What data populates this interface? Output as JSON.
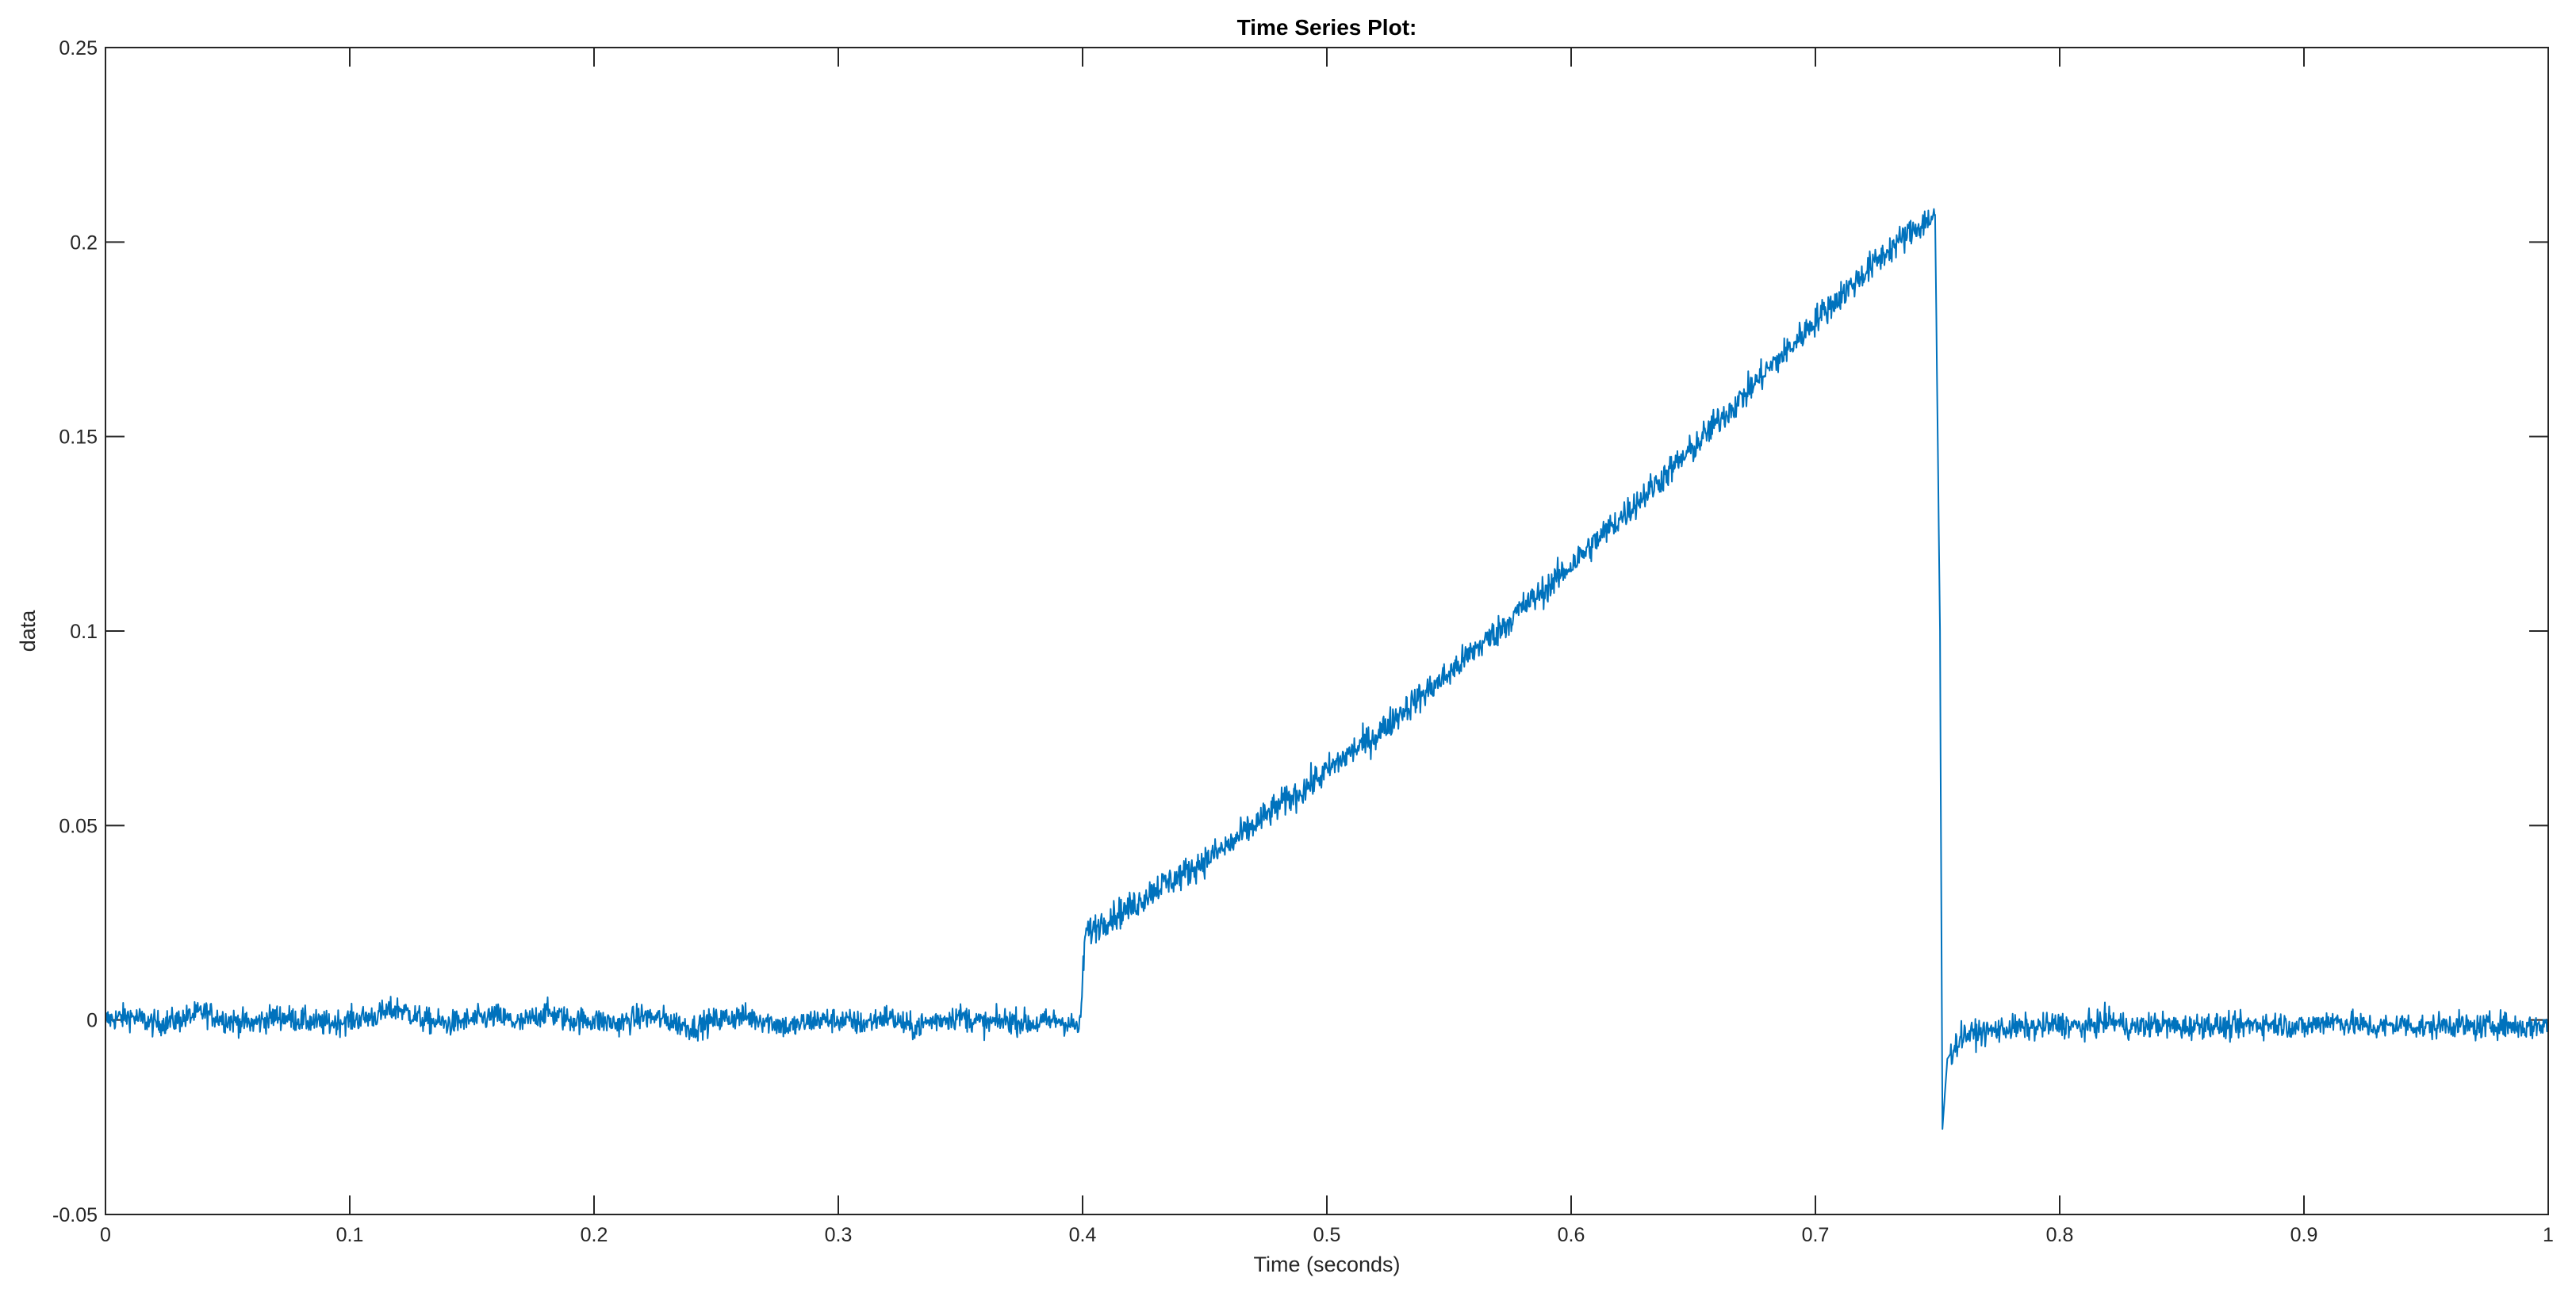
{
  "chart_data": {
    "type": "line",
    "title": "Time Series Plot:",
    "xlabel": "Time (seconds)",
    "ylabel": "data",
    "xlim": [
      0,
      1
    ],
    "ylim": [
      -0.05,
      0.25
    ],
    "x_ticks": [
      "0",
      "0.1",
      "0.2",
      "0.3",
      "0.4",
      "0.5",
      "0.6",
      "0.7",
      "0.8",
      "0.9",
      "1"
    ],
    "y_ticks": [
      "-0.05",
      "0",
      "0.05",
      "0.1",
      "0.15",
      "0.2",
      "0.25"
    ],
    "grid": false,
    "box": true,
    "series_color": "#0072BD",
    "series": [
      {
        "points": [
          [
            0.0,
            0.0
          ],
          [
            0.01,
            0.001
          ],
          [
            0.02,
            -0.001
          ],
          [
            0.03,
            0.0
          ],
          [
            0.04,
            0.002
          ],
          [
            0.05,
            0.0
          ],
          [
            0.06,
            -0.001
          ],
          [
            0.07,
            0.001
          ],
          [
            0.08,
            0.0
          ],
          [
            0.09,
            -0.001
          ],
          [
            0.1,
            0.0
          ],
          [
            0.11,
            0.001
          ],
          [
            0.12,
            0.003
          ],
          [
            0.13,
            0.0
          ],
          [
            0.14,
            -0.001
          ],
          [
            0.15,
            0.0
          ],
          [
            0.16,
            0.001
          ],
          [
            0.17,
            -0.001
          ],
          [
            0.18,
            0.002
          ],
          [
            0.19,
            0.0
          ],
          [
            0.2,
            0.0
          ],
          [
            0.21,
            -0.001
          ],
          [
            0.22,
            0.001
          ],
          [
            0.23,
            0.0
          ],
          [
            0.24,
            -0.002
          ],
          [
            0.25,
            0.0
          ],
          [
            0.26,
            0.001
          ],
          [
            0.27,
            0.0
          ],
          [
            0.28,
            -0.002
          ],
          [
            0.29,
            0.0
          ],
          [
            0.3,
            0.0
          ],
          [
            0.31,
            -0.001
          ],
          [
            0.32,
            0.001
          ],
          [
            0.33,
            -0.002
          ],
          [
            0.34,
            0.0
          ],
          [
            0.35,
            0.001
          ],
          [
            0.36,
            -0.001
          ],
          [
            0.37,
            0.0
          ],
          [
            0.38,
            -0.001
          ],
          [
            0.39,
            0.0
          ],
          [
            0.399,
            -0.002
          ],
          [
            0.401,
            0.022
          ],
          [
            0.41,
            0.026
          ],
          [
            0.42,
            0.029
          ],
          [
            0.43,
            0.034
          ],
          [
            0.44,
            0.037
          ],
          [
            0.45,
            0.041
          ],
          [
            0.46,
            0.045
          ],
          [
            0.47,
            0.05
          ],
          [
            0.48,
            0.055
          ],
          [
            0.49,
            0.059
          ],
          [
            0.5,
            0.064
          ],
          [
            0.51,
            0.069
          ],
          [
            0.52,
            0.073
          ],
          [
            0.53,
            0.079
          ],
          [
            0.54,
            0.084
          ],
          [
            0.55,
            0.089
          ],
          [
            0.56,
            0.095
          ],
          [
            0.57,
            0.1
          ],
          [
            0.58,
            0.106
          ],
          [
            0.59,
            0.111
          ],
          [
            0.6,
            0.117
          ],
          [
            0.61,
            0.123
          ],
          [
            0.62,
            0.129
          ],
          [
            0.63,
            0.135
          ],
          [
            0.64,
            0.141
          ],
          [
            0.65,
            0.147
          ],
          [
            0.66,
            0.154
          ],
          [
            0.67,
            0.16
          ],
          [
            0.68,
            0.167
          ],
          [
            0.69,
            0.173
          ],
          [
            0.7,
            0.18
          ],
          [
            0.71,
            0.186
          ],
          [
            0.72,
            0.192
          ],
          [
            0.73,
            0.198
          ],
          [
            0.74,
            0.203
          ],
          [
            0.749,
            0.207
          ],
          [
            0.751,
            0.1
          ],
          [
            0.752,
            -0.028
          ],
          [
            0.754,
            -0.01
          ],
          [
            0.76,
            -0.004
          ],
          [
            0.77,
            -0.003
          ],
          [
            0.78,
            -0.002
          ],
          [
            0.79,
            -0.002
          ],
          [
            0.8,
            -0.001
          ],
          [
            0.81,
            -0.002
          ],
          [
            0.82,
            0.0
          ],
          [
            0.83,
            -0.002
          ],
          [
            0.84,
            -0.001
          ],
          [
            0.85,
            -0.002
          ],
          [
            0.86,
            -0.001
          ],
          [
            0.87,
            -0.002
          ],
          [
            0.88,
            -0.001
          ],
          [
            0.89,
            -0.001
          ],
          [
            0.9,
            -0.002
          ],
          [
            0.91,
            0.0
          ],
          [
            0.92,
            -0.001
          ],
          [
            0.93,
            -0.002
          ],
          [
            0.94,
            -0.001
          ],
          [
            0.95,
            -0.002
          ],
          [
            0.96,
            -0.001
          ],
          [
            0.97,
            -0.002
          ],
          [
            0.98,
            -0.001
          ],
          [
            0.99,
            -0.002
          ],
          [
            1.0,
            -0.001
          ]
        ]
      }
    ]
  }
}
